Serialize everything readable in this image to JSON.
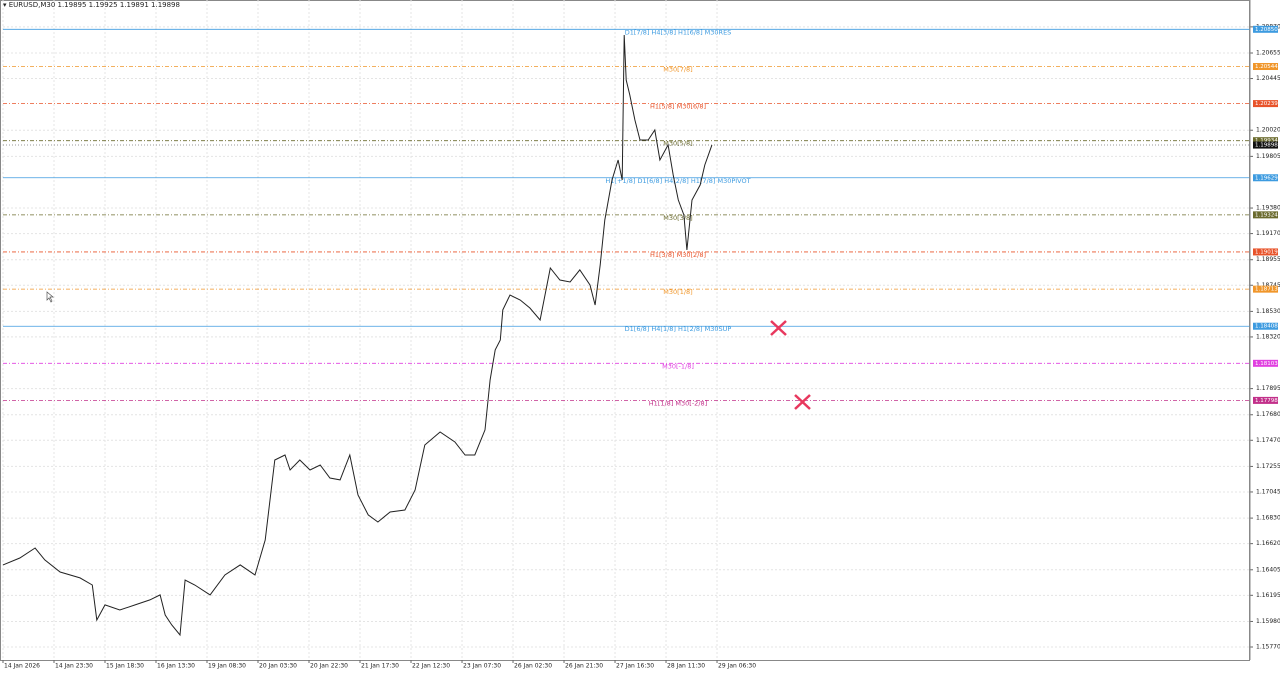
{
  "chart_data": {
    "type": "line",
    "title": "▾ EURUSD,M30  1.19895 1.19925 1.19891 1.19898",
    "xlim": [
      0,
      24.45
    ],
    "ylim": [
      1.15663,
      1.21091
    ],
    "grid": true,
    "xticks": [
      {
        "value": 0,
        "label": "14 Jan 2026"
      },
      {
        "value": 1,
        "label": "14 Jan 23:30"
      },
      {
        "value": 2,
        "label": "15 Jan 18:30"
      },
      {
        "value": 3,
        "label": "16 Jan 13:30"
      },
      {
        "value": 4,
        "label": "19 Jan 08:30"
      },
      {
        "value": 5,
        "label": "20 Jan 03:30"
      },
      {
        "value": 6,
        "label": "20 Jan 22:30"
      },
      {
        "value": 7,
        "label": "21 Jan 17:30"
      },
      {
        "value": 8,
        "label": "22 Jan 12:30"
      },
      {
        "value": 9,
        "label": "23 Jan 07:30"
      },
      {
        "value": 10,
        "label": "26 Jan 02:30"
      },
      {
        "value": 11,
        "label": "26 Jan 21:30"
      },
      {
        "value": 12,
        "label": "27 Jan 16:30"
      },
      {
        "value": 13,
        "label": "28 Jan 11:30"
      },
      {
        "value": 14,
        "label": "29 Jan 06:30"
      }
    ],
    "yticks": [
      {
        "value": 1.2087,
        "label": "1.20870"
      },
      {
        "value": 1.20655,
        "label": "1.20655"
      },
      {
        "value": 1.20445,
        "label": "1.20445"
      },
      {
        "value": 1.2002,
        "label": "1.20020"
      },
      {
        "value": 1.19805,
        "label": "1.19805"
      },
      {
        "value": 1.1938,
        "label": "1.19380"
      },
      {
        "value": 1.1917,
        "label": "1.19170"
      },
      {
        "value": 1.18955,
        "label": "1.18955"
      },
      {
        "value": 1.18745,
        "label": "1.18745"
      },
      {
        "value": 1.1853,
        "label": "1.18530"
      },
      {
        "value": 1.1832,
        "label": "1.18320"
      },
      {
        "value": 1.17895,
        "label": "1.17895"
      },
      {
        "value": 1.1768,
        "label": "1.17680"
      },
      {
        "value": 1.1747,
        "label": "1.17470"
      },
      {
        "value": 1.17255,
        "label": "1.17255"
      },
      {
        "value": 1.17045,
        "label": "1.17045"
      },
      {
        "value": 1.1683,
        "label": "1.16830"
      },
      {
        "value": 1.1662,
        "label": "1.16620"
      },
      {
        "value": 1.16405,
        "label": "1.16405"
      },
      {
        "value": 1.16195,
        "label": "1.16195"
      },
      {
        "value": 1.1598,
        "label": "1.15980"
      },
      {
        "value": 1.1577,
        "label": "1.15770"
      }
    ],
    "series": [
      {
        "color": "#222222",
        "x": [
          0,
          0.33,
          0.63,
          0.82,
          1.12,
          1.51,
          1.75,
          1.84,
          2.0,
          2.29,
          2.59,
          2.88,
          3.08,
          3.18,
          3.31,
          3.47,
          3.57,
          3.76,
          4.06,
          4.35,
          4.65,
          4.94,
          5.14,
          5.33,
          5.53,
          5.63,
          5.82,
          6.02,
          6.22,
          6.41,
          6.61,
          6.8,
          6.96,
          7.16,
          7.35,
          7.59,
          7.88,
          8.08,
          8.27,
          8.57,
          8.86,
          9.06,
          9.25,
          9.45,
          9.55,
          9.65,
          9.75,
          9.8,
          9.94,
          10.14,
          10.33,
          10.53,
          10.73,
          10.92,
          11.12,
          11.31,
          11.51,
          11.61,
          11.71,
          11.8,
          11.94,
          12.06,
          12.14,
          12.18,
          12.22,
          12.29,
          12.39,
          12.49,
          12.65,
          12.78,
          12.88,
          13.04,
          13.14,
          13.24,
          13.35,
          13.41,
          13.51,
          13.67,
          13.76,
          13.9
        ],
        "values": [
          1.16445,
          1.16502,
          1.16584,
          1.16486,
          1.16387,
          1.16338,
          1.1628,
          1.15992,
          1.16116,
          1.16074,
          1.16116,
          1.16157,
          1.16198,
          1.16033,
          1.15951,
          1.15869,
          1.16321,
          1.1628,
          1.16198,
          1.16362,
          1.16445,
          1.16362,
          1.1665,
          1.17308,
          1.17349,
          1.17226,
          1.17308,
          1.17226,
          1.17267,
          1.1716,
          1.17144,
          1.17349,
          1.1702,
          1.16856,
          1.16798,
          1.1688,
          1.16897,
          1.17061,
          1.17431,
          1.17538,
          1.17456,
          1.17349,
          1.17349,
          1.17555,
          1.17966,
          1.18213,
          1.18295,
          1.18542,
          1.18665,
          1.18624,
          1.18558,
          1.18459,
          1.18887,
          1.18788,
          1.18772,
          1.18871,
          1.18747,
          1.18583,
          1.18912,
          1.19282,
          1.19611,
          1.19775,
          1.19611,
          1.20803,
          1.20433,
          1.2031,
          1.20104,
          1.1994,
          1.1994,
          1.20022,
          1.19775,
          1.19899,
          1.19652,
          1.19446,
          1.19323,
          1.19035,
          1.19446,
          1.1957,
          1.19734,
          1.19898
        ]
      }
    ],
    "levels": [
      {
        "label": "D1[7/8] H4[3/8] H1[6/8] M30RES",
        "value": 1.2085,
        "value_label": "1.20850",
        "color": "#3d9be0",
        "dashed": false
      },
      {
        "label": "M30[7/8]",
        "value": 1.20544,
        "value_label": "1.20544",
        "color": "#f0962a",
        "dashed": true
      },
      {
        "label": "H1[5/8] M30[6/8]",
        "value": 1.20239,
        "value_label": "1.20239",
        "color": "#e8532a",
        "dashed": true
      },
      {
        "label": "M30[5/8]",
        "value": 1.19934,
        "value_label": "1.19934",
        "color": "#6b6b2e",
        "dashed": true
      },
      {
        "label": "H1[+1/8] D1[6/8] H4[2/8] H1[7/8] M30PIVOT",
        "value": 1.19629,
        "value_label": "1.19629",
        "color": "#3d9be0",
        "dashed": false
      },
      {
        "label": "M30[3/8]",
        "value": 1.19324,
        "value_label": "1.19324",
        "color": "#6b6b2e",
        "dashed": true
      },
      {
        "label": "H1[3/8] M30[2/8]",
        "value": 1.19019,
        "value_label": "1.19019",
        "color": "#e8532a",
        "dashed": true
      },
      {
        "label": "M30[1/8]",
        "value": 1.18713,
        "value_label": "1.18713",
        "color": "#f0962a",
        "dashed": true
      },
      {
        "label": "D1[6/8] H4[1/8] H1[2/8] M30SUP",
        "value": 1.18408,
        "value_label": "1.18408",
        "color": "#3d9be0",
        "dashed": false
      },
      {
        "label": "M30[-1/8]",
        "value": 1.18103,
        "value_label": "1.18103",
        "color": "#e040e0",
        "dashed": true
      },
      {
        "label": "H1[1/8] M30[-2/8]",
        "value": 1.17798,
        "value_label": "1.17798",
        "color": "#c2308a",
        "dashed": true
      }
    ],
    "last_price": {
      "value": 1.19898,
      "label": "1.19898"
    }
  }
}
